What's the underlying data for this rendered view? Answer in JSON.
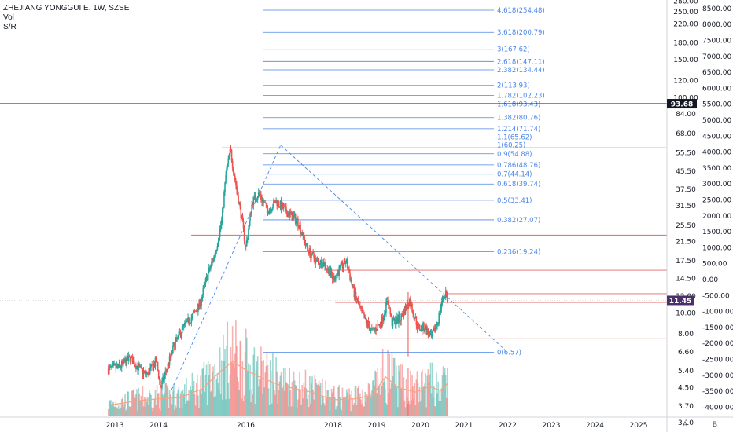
{
  "legend": {
    "title": "ZHEJIANG YONGGUI E, 1W, SZSE",
    "vol": "Vol",
    "sr": "S/R"
  },
  "colors": {
    "up": "#26a69a",
    "down": "#ef5350",
    "fib": "#4a86e8",
    "sr": "#e06666",
    "crosshair": "#131722",
    "current_price_bg": "#4a2f6b",
    "vol_ma": "#f4a582"
  },
  "price_axis_labels": [
    "280.00",
    "250.00",
    "220.00",
    "180.00",
    "150.00",
    "120.00",
    "100.00",
    "84.00",
    "68.00",
    "55.50",
    "45.50",
    "37.50",
    "31.50",
    "25.50",
    "21.50",
    "17.50",
    "14.50",
    "12.00",
    "10.00",
    "8.00",
    "6.60",
    "5.40",
    "4.50",
    "3.70",
    "3.10"
  ],
  "volume_axis_labels": [
    "8500.00",
    "8000.00",
    "7500.00",
    "7000.00",
    "6500.00",
    "6000.00",
    "5500.00",
    "5000.00",
    "4500.00",
    "4000.00",
    "3500.00",
    "3000.00",
    "2500.00",
    "2000.00",
    "1500.00",
    "1000.00",
    "500.00",
    "0.00",
    "-500.00",
    "-1000.00",
    "-1500.00",
    "-2000.00",
    "-2500.00",
    "-3000.00",
    "-3500.00",
    "-4000.00"
  ],
  "crosshair_price": "93.68",
  "current_price": "11.45",
  "corner_buttons": [
    "A",
    "B"
  ],
  "chart_data": {
    "type": "candlestick",
    "title": "ZHEJIANG YONGGUI E, 1W, SZSE",
    "x_axis_labels": [
      "2013",
      "2014",
      "2016",
      "2018",
      "2019",
      "2020",
      "2021",
      "2022",
      "2023",
      "2024",
      "2025"
    ],
    "y_scale": "log",
    "ylim": [
      2.9,
      290
    ],
    "fib_levels": [
      {
        "label": "4.618(254.48)",
        "ratio": 4.618,
        "price": 254.48
      },
      {
        "label": "3.618(200.79)",
        "ratio": 3.618,
        "price": 200.79
      },
      {
        "label": "3(167.62)",
        "ratio": 3,
        "price": 167.62
      },
      {
        "label": "2.618(147.11)",
        "ratio": 2.618,
        "price": 147.11
      },
      {
        "label": "2.382(134.44)",
        "ratio": 2.382,
        "price": 134.44
      },
      {
        "label": "2(113.93)",
        "ratio": 2,
        "price": 113.93
      },
      {
        "label": "1.782(102.23)",
        "ratio": 1.782,
        "price": 102.23
      },
      {
        "label": "1.618(93.43)",
        "ratio": 1.618,
        "price": 93.43
      },
      {
        "label": "1.382(80.76)",
        "ratio": 1.382,
        "price": 80.76
      },
      {
        "label": "1.214(71.74)",
        "ratio": 1.214,
        "price": 71.74
      },
      {
        "label": "1.1(65.62)",
        "ratio": 1.1,
        "price": 65.62
      },
      {
        "label": "1(60.25)",
        "ratio": 1,
        "price": 60.25
      },
      {
        "label": "0.9(54.88)",
        "ratio": 0.9,
        "price": 54.88
      },
      {
        "label": "0.786(48.76)",
        "ratio": 0.786,
        "price": 48.76
      },
      {
        "label": "0.7(44.14)",
        "ratio": 0.7,
        "price": 44.14
      },
      {
        "label": "0.618(39.74)",
        "ratio": 0.618,
        "price": 39.74
      },
      {
        "label": "0.5(33.41)",
        "ratio": 0.5,
        "price": 33.41
      },
      {
        "label": "0.382(27.07)",
        "ratio": 0.382,
        "price": 27.07
      },
      {
        "label": "0.236(19.24)",
        "ratio": 0.236,
        "price": 19.24
      },
      {
        "label": "0(6.57)",
        "ratio": 0,
        "price": 6.57
      }
    ],
    "sr_levels": [
      {
        "start": 2015.45,
        "price": 58.5
      },
      {
        "start": 2015.45,
        "price": 41.0
      },
      {
        "start": 2014.75,
        "price": 23.0
      },
      {
        "start": 2017.8,
        "price": 18.0
      },
      {
        "start": 2017.8,
        "price": 15.8
      },
      {
        "start": 2020.6,
        "price": 12.3
      },
      {
        "start": 2018.05,
        "price": 11.2
      },
      {
        "start": 2018.85,
        "price": 7.6
      }
    ],
    "trend_lines": [
      {
        "from": [
          2014.3,
          4.4
        ],
        "to": [
          2016.8,
          60.25
        ]
      },
      {
        "from": [
          2016.8,
          60.25
        ],
        "to": [
          2022.0,
          6.57
        ]
      }
    ],
    "candle_anchors": [
      [
        2012.85,
        5.5
      ],
      [
        2013.1,
        5.6
      ],
      [
        2013.35,
        6.2
      ],
      [
        2013.6,
        5.4
      ],
      [
        2013.75,
        5.2
      ],
      [
        2013.95,
        6.0
      ],
      [
        2014.05,
        4.5
      ],
      [
        2014.2,
        5.6
      ],
      [
        2014.35,
        7.0
      ],
      [
        2014.55,
        8.5
      ],
      [
        2014.75,
        9.5
      ],
      [
        2014.95,
        11.0
      ],
      [
        2015.1,
        14.5
      ],
      [
        2015.3,
        19.0
      ],
      [
        2015.45,
        27.0
      ],
      [
        2015.55,
        45.0
      ],
      [
        2015.65,
        57.0
      ],
      [
        2015.75,
        42.0
      ],
      [
        2015.9,
        28.0
      ],
      [
        2016.0,
        20.0
      ],
      [
        2016.15,
        33.0
      ],
      [
        2016.3,
        36.0
      ],
      [
        2016.5,
        30.0
      ],
      [
        2016.7,
        33.0
      ],
      [
        2016.9,
        30.0
      ],
      [
        2017.2,
        26.5
      ],
      [
        2017.4,
        20.0
      ],
      [
        2017.6,
        17.5
      ],
      [
        2017.8,
        17.0
      ],
      [
        2018.0,
        14.5
      ],
      [
        2018.3,
        17.5
      ],
      [
        2018.5,
        12.0
      ],
      [
        2018.7,
        9.5
      ],
      [
        2018.9,
        8.2
      ],
      [
        2019.1,
        9.0
      ],
      [
        2019.25,
        11.5
      ],
      [
        2019.35,
        9.0
      ],
      [
        2019.55,
        9.5
      ],
      [
        2019.75,
        11.5
      ],
      [
        2019.95,
        8.5
      ],
      [
        2020.1,
        8.6
      ],
      [
        2020.25,
        7.6
      ],
      [
        2020.4,
        9.2
      ],
      [
        2020.5,
        11.5
      ],
      [
        2020.58,
        12.5
      ],
      [
        2020.62,
        11.45
      ]
    ],
    "volume_ma": [
      [
        2012.85,
        1.0
      ],
      [
        2013.5,
        1.4
      ],
      [
        2014.0,
        1.6
      ],
      [
        2014.5,
        1.7
      ],
      [
        2015.0,
        2.5
      ],
      [
        2015.4,
        4.0
      ],
      [
        2015.7,
        5.0
      ],
      [
        2016.0,
        4.2
      ],
      [
        2016.3,
        3.6
      ],
      [
        2016.8,
        2.8
      ],
      [
        2017.5,
        2.2
      ],
      [
        2018.0,
        1.5
      ],
      [
        2018.5,
        1.6
      ],
      [
        2018.9,
        1.9
      ],
      [
        2019.2,
        3.6
      ],
      [
        2019.5,
        2.6
      ],
      [
        2019.9,
        2.2
      ],
      [
        2020.2,
        2.7
      ],
      [
        2020.5,
        2.3
      ],
      [
        2020.62,
        3.0
      ]
    ]
  }
}
